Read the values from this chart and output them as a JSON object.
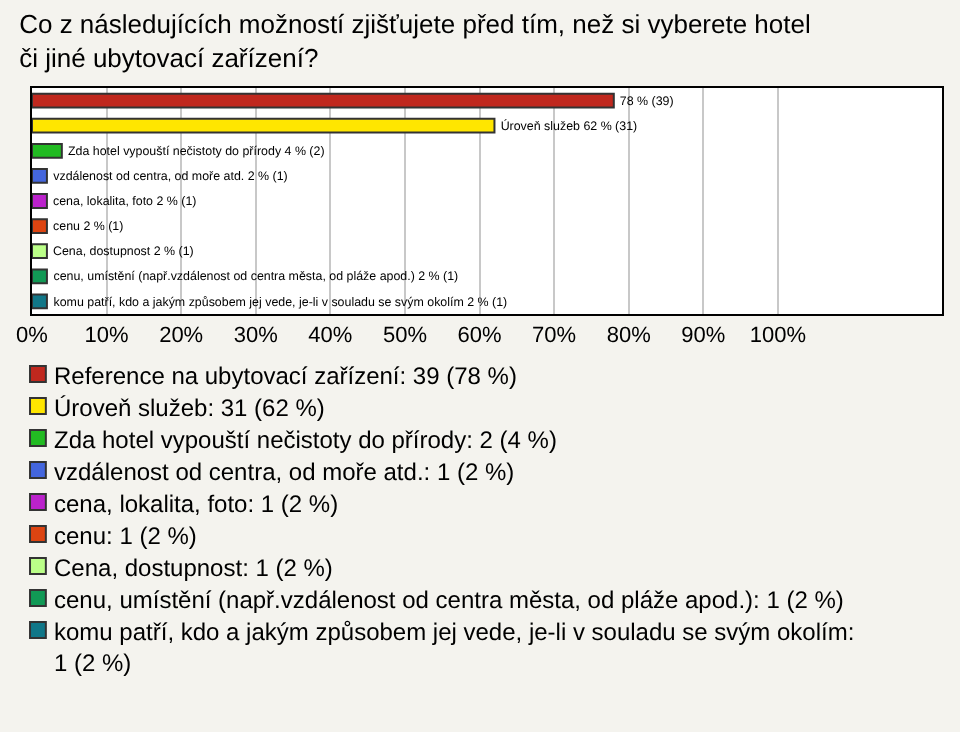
{
  "chart_data": {
    "type": "bar",
    "orientation": "horizontal",
    "title": "Co z následujících možností zjišťujete před tím, než si vyberete hotel či jiné ubytovací zařízení?",
    "categories": [
      null,
      null,
      null,
      null,
      null,
      null,
      null,
      null,
      null
    ],
    "series": [
      {
        "name": "Reference na ubytovací zařízení: 39 (78 %)",
        "color": "#c0281e",
        "values": [
          78,
          null,
          null,
          null,
          null,
          null,
          null,
          null,
          null
        ],
        "value_labels": [
          "78 % (39)",
          null,
          null,
          null,
          null,
          null,
          null,
          null,
          null
        ]
      },
      {
        "name": "Úroveň služeb: 31 (62 %)",
        "color": "#ffe600",
        "values": [
          null,
          62,
          null,
          null,
          null,
          null,
          null,
          null,
          null
        ],
        "value_labels": [
          null,
          "Úroveň služeb 62 % (31)",
          null,
          null,
          null,
          null,
          null,
          null,
          null
        ]
      },
      {
        "name": "Zda hotel vypouští nečistoty do přírody: 2 (4 %)",
        "color": "#22bb22",
        "values": [
          null,
          null,
          4,
          null,
          null,
          null,
          null,
          null,
          null
        ],
        "value_labels": [
          null,
          null,
          "Zda hotel vypouští nečistoty do přírody 4 % (2)",
          null,
          null,
          null,
          null,
          null,
          null
        ]
      },
      {
        "name": "vzdálenost od centra, od moře atd.: 1 (2 %)",
        "color": "#4466dd",
        "values": [
          null,
          null,
          null,
          2,
          null,
          null,
          null,
          null,
          null
        ],
        "value_labels": [
          null,
          null,
          null,
          "vzdálenost od centra, od moře atd. 2 % (1)",
          null,
          null,
          null,
          null,
          null
        ]
      },
      {
        "name": "cena, lokalita, foto: 1 (2 %)",
        "color": "#bb22cc",
        "values": [
          null,
          null,
          null,
          null,
          2,
          null,
          null,
          null,
          null
        ],
        "value_labels": [
          null,
          null,
          null,
          null,
          "cena, lokalita, foto 2 % (1)",
          null,
          null,
          null,
          null
        ]
      },
      {
        "name": "cenu: 1 (2 %)",
        "color": "#dd4411",
        "values": [
          null,
          null,
          null,
          null,
          null,
          2,
          null,
          null,
          null
        ],
        "value_labels": [
          null,
          null,
          null,
          null,
          null,
          "cenu 2 % (1)",
          null,
          null,
          null
        ]
      },
      {
        "name": "Cena, dostupnost: 1 (2 %)",
        "color": "#bbff88",
        "values": [
          null,
          null,
          null,
          null,
          null,
          null,
          2,
          null,
          null
        ],
        "value_labels": [
          null,
          null,
          null,
          null,
          null,
          null,
          "Cena, dostupnost 2 % (1)",
          null,
          null
        ]
      },
      {
        "name": "cenu, umístění (např.vzdálenost od centra města, od pláže apod.): 1 (2 %)",
        "color": "#119955",
        "values": [
          null,
          null,
          null,
          null,
          null,
          null,
          null,
          2,
          null
        ],
        "value_labels": [
          null,
          null,
          null,
          null,
          null,
          null,
          null,
          "cenu, umístění (např.vzdálenost od centra města, od pláže apod.) 2 % (1)",
          null
        ]
      },
      {
        "name": "komu patří, kdo a jakým způsobem jej vede, je-li v souladu se svým okolím: 1 (2 %)",
        "color": "#117788",
        "values": [
          null,
          null,
          null,
          null,
          null,
          null,
          null,
          null,
          2
        ],
        "value_labels": [
          null,
          null,
          null,
          null,
          null,
          null,
          null,
          null,
          "komu patří, kdo a jakým způsobem jej vede, je-li v souladu se svým okolím 2 % (1)"
        ]
      }
    ],
    "xlim": [
      0,
      122
    ],
    "xticks": [
      {
        "value": 0,
        "label": "0%"
      },
      {
        "value": 10,
        "label": "10%"
      },
      {
        "value": 20,
        "label": "20%"
      },
      {
        "value": 30,
        "label": "30%"
      },
      {
        "value": 40,
        "label": "40%"
      },
      {
        "value": 50,
        "label": "50%"
      },
      {
        "value": 60,
        "label": "60%"
      },
      {
        "value": 70,
        "label": "70%"
      },
      {
        "value": 80,
        "label": "80%"
      },
      {
        "value": 90,
        "label": "90%"
      },
      {
        "value": 100,
        "label": "100%"
      }
    ],
    "grid": "x",
    "legend": "bottom",
    "tick_labels": "x"
  }
}
